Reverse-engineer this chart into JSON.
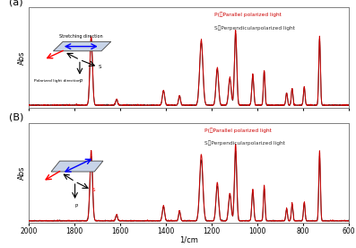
{
  "title_a": "(a)",
  "title_b": "(B)",
  "xlabel": "1/cm",
  "ylabel": "Abs",
  "xlim": [
    2000,
    600
  ],
  "legend_parallel": "P(　Parallel polarized light",
  "legend_perp": "S（Perpendicularpolarized light",
  "line_parallel_color": "#cc0000",
  "line_perp_color": "#333333",
  "background": "#ffffff"
}
